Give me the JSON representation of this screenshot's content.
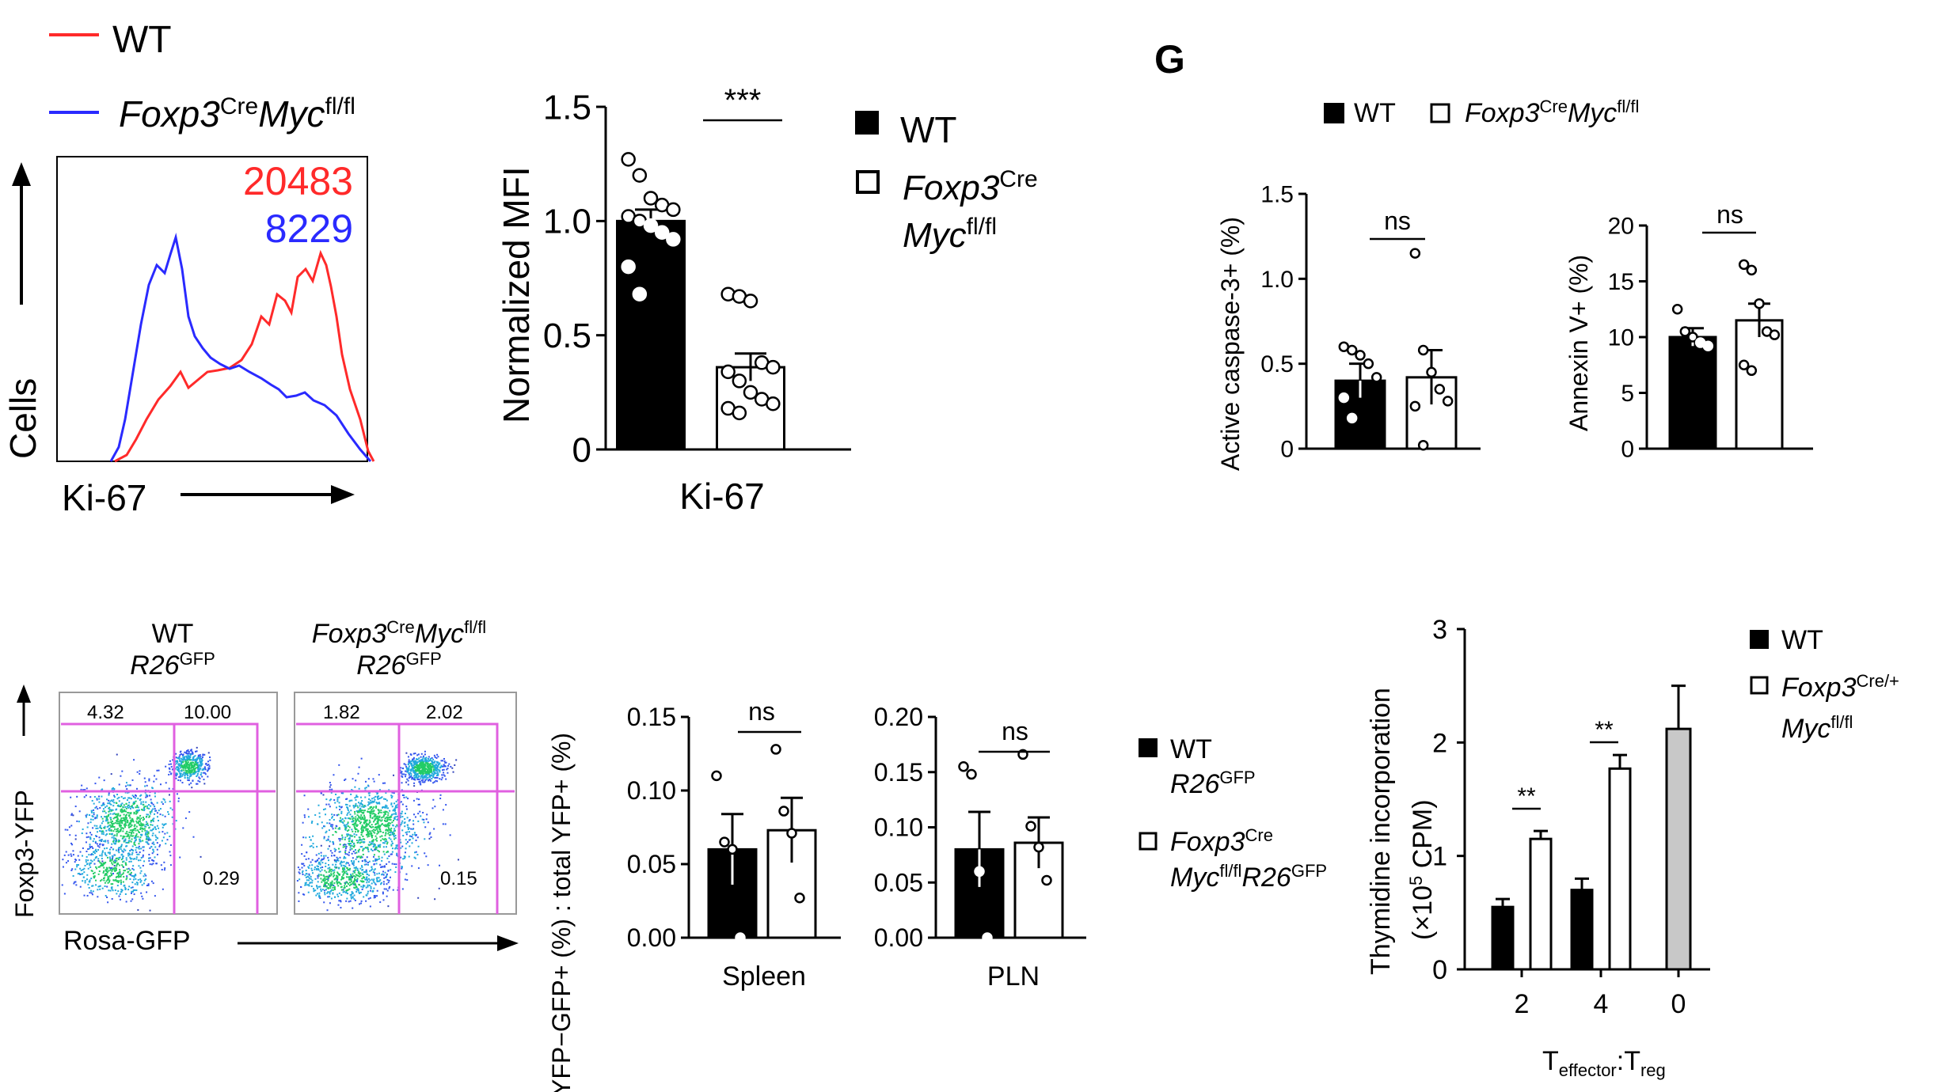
{
  "panel_label": "G",
  "legends": {
    "wt": "WT",
    "ko_italic": "Foxp3",
    "ko_cre": "Cre",
    "ko_myc": "Myc",
    "ko_flfl": "fl/fl",
    "ko_cre_plus": "Cre/+",
    "r26": "R26",
    "gfp": "GFP"
  },
  "histogram": {
    "ylabel": "Cells",
    "xlabel": "Ki-67",
    "mfi_wt": "20483",
    "mfi_ko": "8229",
    "wt_color": "#ff2a2a",
    "ko_color": "#2a2aff"
  },
  "flow": {
    "col1_line1": "WT",
    "col1_line2": "R26",
    "col2_line1a": "Foxp3",
    "col2_line1b": "Cre",
    "col2_line1c": "Myc",
    "col2_line1d": "fl/fl",
    "col2_line2": "R26",
    "ylabel": "Foxp3-YFP",
    "xlabel": "Rosa-GFP",
    "wt_q": [
      "4.32",
      "10.00",
      "0.29"
    ],
    "ko_q": [
      "1.82",
      "2.02",
      "0.15"
    ],
    "gate_color": "#e060e0"
  },
  "chart_data": [
    {
      "id": "ki67",
      "type": "bar",
      "categories": [
        "WT",
        "Foxp3CreMycfl/fl"
      ],
      "values": [
        1.0,
        0.36
      ],
      "errors": [
        0.05,
        0.06
      ],
      "points": [
        [
          1.27,
          1.2,
          1.1,
          1.07,
          1.05,
          1.02,
          1.0,
          0.98,
          0.95,
          0.92,
          0.8,
          0.68
        ],
        [
          0.68,
          0.67,
          0.65,
          0.38,
          0.36,
          0.34,
          0.3,
          0.25,
          0.22,
          0.2,
          0.18,
          0.16
        ]
      ],
      "xlabel": "Ki-67",
      "ylabel": "Normalized MFI",
      "ylim": [
        0,
        1.5
      ],
      "yticks": [
        "0",
        "0.5",
        "1.0",
        "1.5"
      ],
      "sig": "***"
    },
    {
      "id": "caspase",
      "type": "bar",
      "categories": [
        "WT",
        "Foxp3CreMycfl/fl"
      ],
      "values": [
        0.4,
        0.42
      ],
      "errors": [
        0.1,
        0.16
      ],
      "points": [
        [
          0.6,
          0.58,
          0.55,
          0.5,
          0.42,
          0.3,
          0.18
        ],
        [
          1.15,
          0.58,
          0.45,
          0.35,
          0.28,
          0.25,
          0.02
        ]
      ],
      "ylabel": "Active caspase-3+ (%)",
      "ylim": [
        0,
        1.5
      ],
      "yticks": [
        "0",
        "0.5",
        "1.0",
        "1.5"
      ],
      "sig": "ns"
    },
    {
      "id": "annexin",
      "type": "bar",
      "categories": [
        "WT",
        "Foxp3CreMycfl/fl"
      ],
      "values": [
        10,
        11.5
      ],
      "errors": [
        0.8,
        1.5
      ],
      "points": [
        [
          12.5,
          10.5,
          10,
          9.5,
          9.2
        ],
        [
          16.5,
          16,
          13,
          10.5,
          10.2,
          7.5,
          7
        ]
      ],
      "ylabel": "Annexin V+ (%)",
      "ylim": [
        0,
        20
      ],
      "yticks": [
        "0",
        "5",
        "10",
        "15",
        "20"
      ],
      "sig": "ns"
    },
    {
      "id": "spleen",
      "type": "bar",
      "categories": [
        "WT R26GFP",
        "Foxp3CreMycfl/flR26GFP"
      ],
      "values": [
        0.06,
        0.073
      ],
      "errors": [
        0.024,
        0.022
      ],
      "points": [
        [
          0.11,
          0.065,
          0.06,
          0.0
        ],
        [
          0.128,
          0.086,
          0.071,
          0.027
        ]
      ],
      "xlabel": "Spleen",
      "ylabel": "YFP−GFP+ (%) : total YFP+ (%)",
      "ylim": [
        0,
        0.15
      ],
      "yticks": [
        "0.00",
        "0.05",
        "0.10",
        "0.15"
      ],
      "sig": "ns"
    },
    {
      "id": "pln",
      "type": "bar",
      "categories": [
        "WT R26GFP",
        "Foxp3CreMycfl/flR26GFP"
      ],
      "values": [
        0.08,
        0.086
      ],
      "errors": [
        0.034,
        0.023
      ],
      "points": [
        [
          0.155,
          0.148,
          0.06,
          0.0
        ],
        [
          0.166,
          0.101,
          0.082,
          0.052
        ]
      ],
      "xlabel": "PLN",
      "ylim": [
        0,
        0.2
      ],
      "yticks": [
        "0.00",
        "0.05",
        "0.10",
        "0.15",
        "0.20"
      ],
      "sig": "ns"
    },
    {
      "id": "thymidine",
      "type": "bar",
      "categories": [
        "2",
        "4",
        "0"
      ],
      "series": [
        {
          "name": "WT",
          "values": [
            0.55,
            0.7,
            null
          ],
          "errors": [
            0.07,
            0.1,
            null
          ]
        },
        {
          "name": "Foxp3Cre/+Mycfl/fl",
          "values": [
            1.15,
            1.77,
            null
          ],
          "errors": [
            0.07,
            0.12,
            null
          ]
        },
        {
          "values": [
            null,
            null,
            2.12
          ],
          "errors": [
            null,
            null,
            0.38
          ]
        }
      ],
      "xlabel": "Teffector:Treg",
      "ylabel": "Thymidine incorporation (×105 CPM)",
      "ylim": [
        0,
        3
      ],
      "yticks": [
        "0",
        "1",
        "2",
        "3"
      ],
      "sig": [
        "**",
        "**"
      ]
    }
  ]
}
